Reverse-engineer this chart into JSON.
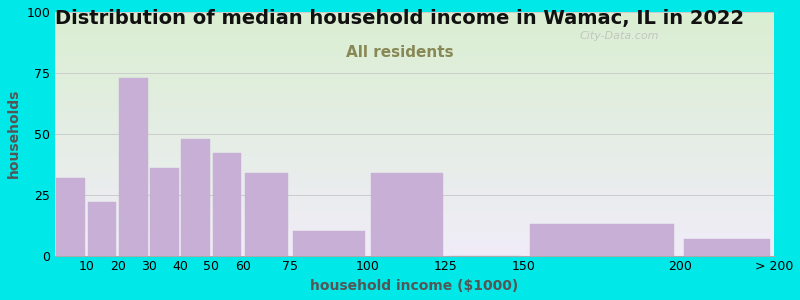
{
  "title": "Distribution of median household income in Wamac, IL in 2022",
  "subtitle": "All residents",
  "xlabel": "household income ($1000)",
  "ylabel": "households",
  "tick_labels": [
    "10",
    "20",
    "30",
    "40",
    "50",
    "60",
    "75",
    "100",
    "125",
    "150",
    "200",
    "> 200"
  ],
  "bar_edges": [
    0,
    10,
    20,
    30,
    40,
    50,
    60,
    75,
    100,
    125,
    150,
    200,
    230
  ],
  "bar_values": [
    32,
    22,
    73,
    36,
    48,
    42,
    34,
    10,
    34,
    0,
    13,
    7
  ],
  "bar_color": "#c8afd6",
  "bar_edge_color": "#c8afd6",
  "background_outer": "#00e8e8",
  "background_plot_top_color": "#daefd2",
  "background_plot_bottom_color": "#f0ecf8",
  "ylim": [
    0,
    100
  ],
  "yticks": [
    0,
    25,
    50,
    75,
    100
  ],
  "title_fontsize": 14,
  "subtitle_fontsize": 11,
  "axis_label_fontsize": 10,
  "tick_fontsize": 9,
  "watermark_text": "City-Data.com",
  "grid_color": "#cccccc",
  "subtitle_color": "#888855",
  "title_color": "#111111",
  "ylabel_color": "#555555",
  "xlabel_color": "#555555"
}
